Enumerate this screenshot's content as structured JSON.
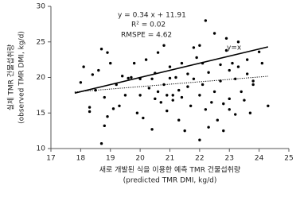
{
  "chart_data": {
    "type": "scatter",
    "x_label_lines": [
      "새로 개발된 식을 이용한 예측 TMR 건물섭취량",
      "(predicted TMR DMI, kg/d)"
    ],
    "y_label_lines": [
      "실제 TMR 건물섭취량",
      "(observed TMR DMI, kg/d)"
    ],
    "annotations": [
      "y = 0.34 x + 11.91",
      "R² = 0.02",
      "RMSPE = 4.62",
      "y=x"
    ],
    "xlim": [
      17,
      25
    ],
    "xticks": [
      17,
      18,
      19,
      20,
      21,
      22,
      23,
      24,
      25
    ],
    "ylim": [
      10,
      30
    ],
    "yticks": [
      10,
      15,
      20,
      25,
      30
    ],
    "color": "#000000",
    "x": [
      18.0,
      18.1,
      18.3,
      18.3,
      18.4,
      18.5,
      18.6,
      18.7,
      18.7,
      18.8,
      18.8,
      18.9,
      18.9,
      19.0,
      19.1,
      19.2,
      19.3,
      19.4,
      19.5,
      19.6,
      19.7,
      19.8,
      19.9,
      20.0,
      20.0,
      20.1,
      20.2,
      20.3,
      20.4,
      20.4,
      20.5,
      20.5,
      20.6,
      20.6,
      20.7,
      20.8,
      20.8,
      20.9,
      20.9,
      21.0,
      21.0,
      21.1,
      21.1,
      21.2,
      21.3,
      21.3,
      21.4,
      21.4,
      21.5,
      21.6,
      21.6,
      21.7,
      21.8,
      21.8,
      21.9,
      22.0,
      22.0,
      22.0,
      22.1,
      22.1,
      22.2,
      22.2,
      22.3,
      22.3,
      22.4,
      22.5,
      22.5,
      22.6,
      22.7,
      22.7,
      22.8,
      22.8,
      22.9,
      22.9,
      23.0,
      23.0,
      23.0,
      23.1,
      23.2,
      23.2,
      23.3,
      23.3,
      23.4,
      23.5,
      23.6,
      23.6,
      23.7,
      23.8,
      23.8,
      24.0,
      24.1,
      24.3
    ],
    "values": [
      19.3,
      21.5,
      15.8,
      15.2,
      20.4,
      18.2,
      21.0,
      24.0,
      10.7,
      17.2,
      13.2,
      23.5,
      14.5,
      22.0,
      15.6,
      19.0,
      16.0,
      20.2,
      17.5,
      19.9,
      20.0,
      22.0,
      15.0,
      17.5,
      19.8,
      14.3,
      22.5,
      18.5,
      12.7,
      19.8,
      20.6,
      17.0,
      23.5,
      18.0,
      16.5,
      24.5,
      19.0,
      17.5,
      15.3,
      21.5,
      19.9,
      16.8,
      17.5,
      20.0,
      18.2,
      14.0,
      22.0,
      17.2,
      12.5,
      20.5,
      18.7,
      16.0,
      24.2,
      19.8,
      22.8,
      24.5,
      17.5,
      11.2,
      22.0,
      19.0,
      28.0,
      15.5,
      13.0,
      20.7,
      16.5,
      26.2,
      18.0,
      14.0,
      21.8,
      19.5,
      16.3,
      12.5,
      25.5,
      23.8,
      21.0,
      17.0,
      15.5,
      22.0,
      19.8,
      14.8,
      25.0,
      21.5,
      18.0,
      16.8,
      22.5,
      20.5,
      15.0,
      19.0,
      19.5,
      23.6,
      22.0,
      16.0
    ],
    "lines": [
      {
        "style": "solid",
        "color": "#000000",
        "x": [
          17.8,
          24.3
        ],
        "values": [
          17.8,
          24.3
        ]
      },
      {
        "style": "dotted",
        "color": "#000000",
        "x": [
          17.8,
          24.3
        ],
        "values": [
          17.96,
          20.17
        ]
      }
    ]
  }
}
